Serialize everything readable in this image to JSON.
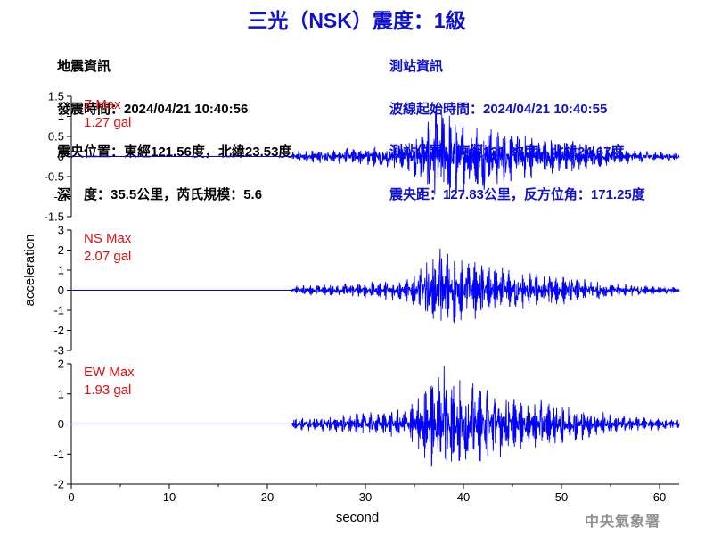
{
  "header": {
    "title": "三光（NSK）震度：1級"
  },
  "quake_info": {
    "heading": "地震資訊",
    "time": "發震時間：2024/04/21 10:40:56",
    "epicenter": "震央位置：東經121.56度，北緯23.53度",
    "depth": "深　度：35.5公里，芮氏規模：5.6"
  },
  "station_info": {
    "heading": "測站資訊",
    "wave_start": "波線起始時間：2024/04/21 10:40:55",
    "position": "測站位置：東經121.37度，北緯24.67度",
    "distance": "震央距：127.83公里，反方位角：171.25度"
  },
  "footer": {
    "agency": "中央氣象署"
  },
  "chart_data": {
    "type": "line",
    "xlabel": "second",
    "ylabel": "acceleration",
    "xlim": [
      0,
      62
    ],
    "xticks": [
      "0",
      "10",
      "20",
      "30",
      "40",
      "50",
      "60"
    ],
    "line_color": "#0000ff",
    "label_color": "#e01010",
    "panels": [
      {
        "name": "Z",
        "max_label": "Z Max",
        "max_value": "1.27 gal",
        "peak": 1.27,
        "ylim": [
          -1.5,
          1.5
        ],
        "yticks": [
          "1.5",
          "1",
          "0.5",
          "0",
          "-0.5",
          "-1",
          "-1.5"
        ]
      },
      {
        "name": "NS",
        "max_label": "NS Max",
        "max_value": "2.07 gal",
        "peak": 2.07,
        "ylim": [
          -3,
          3
        ],
        "yticks": [
          "3",
          "2",
          "1",
          "0",
          "-1",
          "-2",
          "-3"
        ]
      },
      {
        "name": "EW",
        "max_label": "EW Max",
        "max_value": "1.93 gal",
        "peak": 1.93,
        "ylim": [
          -2,
          2
        ],
        "yticks": [
          "2",
          "1",
          "0",
          "-1",
          "-2"
        ]
      }
    ]
  }
}
